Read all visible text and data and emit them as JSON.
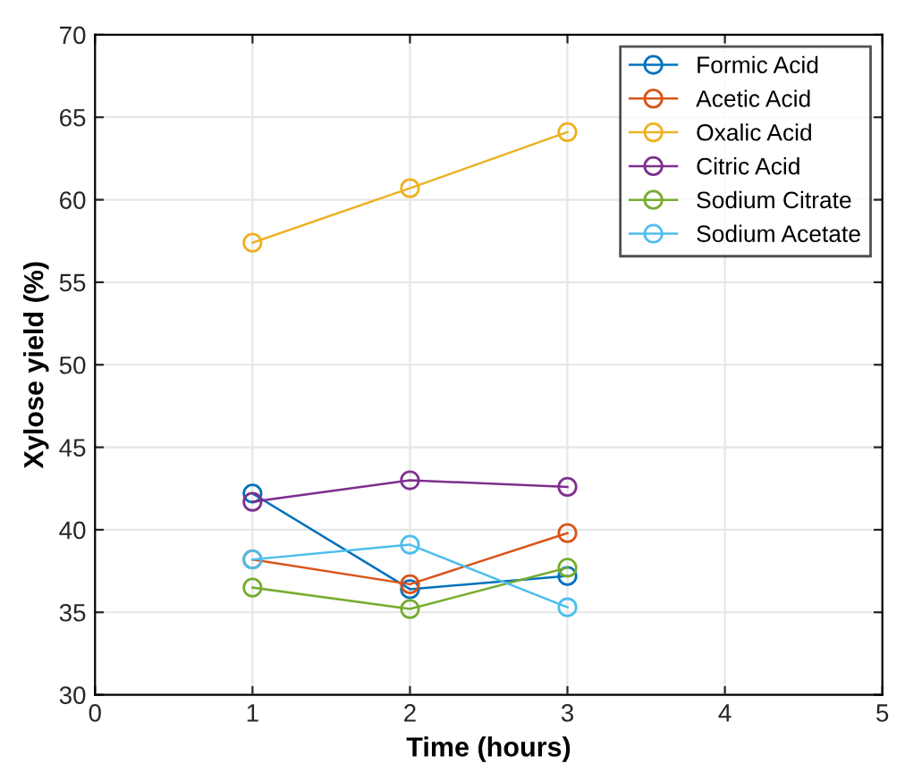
{
  "chart_data": {
    "type": "line",
    "xlabel": "Time (hours)",
    "ylabel": "Xylose yield (%)",
    "x": [
      1,
      2,
      3
    ],
    "series": [
      {
        "name": "Formic Acid",
        "color": "#0072bd",
        "values": [
          42.2,
          36.4,
          37.2
        ]
      },
      {
        "name": "Acetic Acid",
        "color": "#d95319",
        "values": [
          38.2,
          36.7,
          39.8
        ]
      },
      {
        "name": "Oxalic Acid",
        "color": "#edb120",
        "values": [
          57.4,
          60.7,
          64.1
        ]
      },
      {
        "name": "Citric Acid",
        "color": "#7e2f8e",
        "values": [
          41.7,
          43.0,
          42.6
        ]
      },
      {
        "name": "Sodium Citrate",
        "color": "#77ac30",
        "values": [
          36.5,
          35.2,
          37.7
        ]
      },
      {
        "name": "Sodium Acetate",
        "color": "#4dbeee",
        "values": [
          38.2,
          39.1,
          35.3
        ]
      }
    ],
    "xlim": [
      0,
      5
    ],
    "xticks": [
      0,
      1,
      2,
      3,
      4,
      5
    ],
    "ylim": [
      30,
      70
    ],
    "yticks": [
      30,
      35,
      40,
      45,
      50,
      55,
      60,
      65,
      70
    ],
    "grid": true,
    "legend": "top right",
    "marker": "circle",
    "line_style": "solid"
  }
}
